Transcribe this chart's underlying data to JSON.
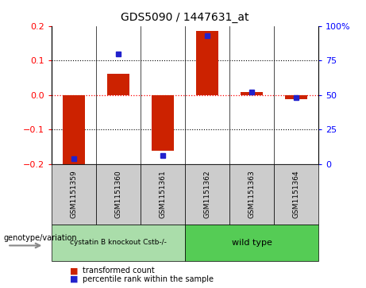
{
  "title": "GDS5090 / 1447631_at",
  "samples": [
    "GSM1151359",
    "GSM1151360",
    "GSM1151361",
    "GSM1151362",
    "GSM1151363",
    "GSM1151364"
  ],
  "red_values": [
    -0.21,
    0.062,
    -0.162,
    0.185,
    0.008,
    -0.012
  ],
  "blue_values_pct": [
    4,
    80,
    6,
    93,
    52,
    48
  ],
  "ylim_left": [
    -0.2,
    0.2
  ],
  "ylim_right": [
    0,
    100
  ],
  "yticks_left": [
    -0.2,
    -0.1,
    0.0,
    0.1,
    0.2
  ],
  "yticks_right": [
    0,
    25,
    50,
    75,
    100
  ],
  "ytick_labels_right": [
    "0",
    "25",
    "50",
    "75",
    "100%"
  ],
  "bar_color": "#cc2200",
  "dot_color": "#2222cc",
  "group1_label": "cystatin B knockout Cstb-/-",
  "group2_label": "wild type",
  "group1_indices": [
    0,
    1,
    2
  ],
  "group2_indices": [
    3,
    4,
    5
  ],
  "group1_bg": "#aaddaa",
  "group2_bg": "#55cc55",
  "sample_bg": "#cccccc",
  "legend_red_label": "transformed count",
  "legend_blue_label": "percentile rank within the sample",
  "genotype_label": "genotype/variation"
}
